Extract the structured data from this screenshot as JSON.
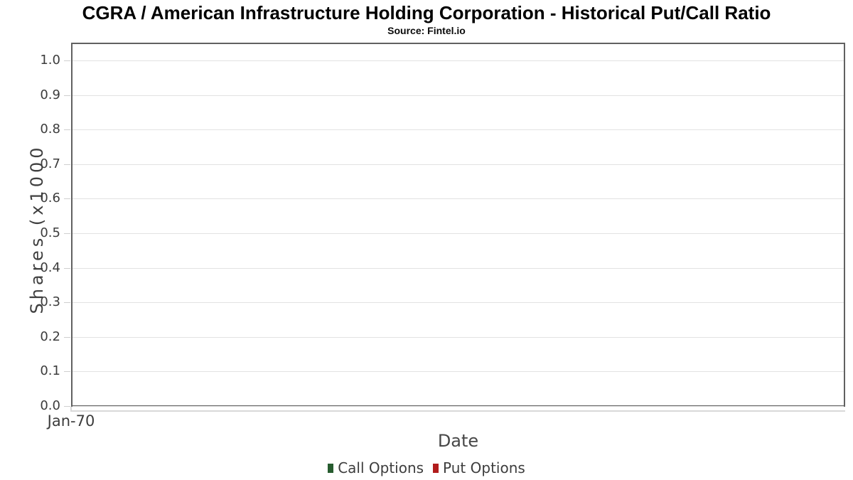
{
  "chart_data": {
    "type": "line",
    "title": "CGRA / American Infrastructure Holding Corporation - Historical Put/Call Ratio",
    "subtitle": "Source: Fintel.io",
    "xlabel": "Date",
    "ylabel": "Shares (x1000",
    "x_tick_labels": [
      "Jan-70"
    ],
    "y_tick_labels": [
      "0.0",
      "0.1",
      "0.2",
      "0.3",
      "0.4",
      "0.5",
      "0.6",
      "0.7",
      "0.8",
      "0.9",
      "1.0"
    ],
    "ylim": [
      0,
      1.05
    ],
    "grid": true,
    "legend_position": "bottom",
    "legend": [
      {
        "label": "Call Options",
        "color": "#275c2f"
      },
      {
        "label": "Put Options",
        "color": "#b11c1c"
      }
    ],
    "series": [
      {
        "name": "Call Options",
        "color": "#275c2f",
        "x": [],
        "y": []
      },
      {
        "name": "Put Options",
        "color": "#b11c1c",
        "x": [],
        "y": []
      }
    ]
  },
  "colors": {
    "plot_border": "#616161",
    "gridline": "#e2e2e2",
    "axis_line": "#d9d9d9",
    "tick_text": "#3c3c3c"
  }
}
